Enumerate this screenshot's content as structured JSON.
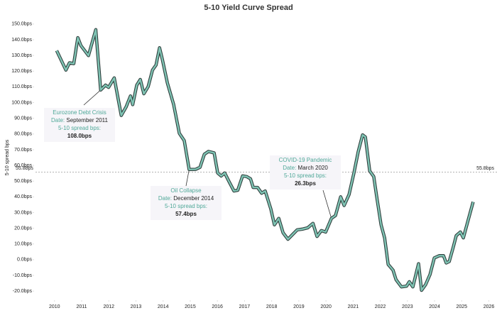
{
  "chart_data": {
    "type": "line",
    "title": "5-10 Yield Curve Spread",
    "y_label": "5-10 spread bps",
    "x": [
      2010.08,
      2010.42,
      2010.55,
      2010.71,
      2010.86,
      2010.97,
      2011.25,
      2011.52,
      2011.7,
      2011.88,
      2011.99,
      2012.2,
      2012.46,
      2012.64,
      2012.8,
      2012.88,
      2013.03,
      2013.16,
      2013.29,
      2013.45,
      2013.61,
      2013.74,
      2013.87,
      2013.97,
      2014.16,
      2014.39,
      2014.6,
      2014.78,
      2014.96,
      2015.2,
      2015.36,
      2015.52,
      2015.67,
      2015.88,
      2016.01,
      2016.14,
      2016.27,
      2016.43,
      2016.61,
      2016.75,
      2016.93,
      2017.08,
      2017.22,
      2017.32,
      2017.48,
      2017.63,
      2017.76,
      2017.97,
      2018.1,
      2018.26,
      2018.42,
      2018.6,
      2018.78,
      2018.94,
      2019.12,
      2019.33,
      2019.52,
      2019.67,
      2019.83,
      2019.99,
      2020.2,
      2020.35,
      2020.54,
      2020.67,
      2020.85,
      2021.03,
      2021.19,
      2021.35,
      2021.45,
      2021.61,
      2021.76,
      2021.87,
      2022.03,
      2022.16,
      2022.29,
      2022.47,
      2022.58,
      2022.78,
      2022.97,
      2023.07,
      2023.2,
      2023.41,
      2023.52,
      2023.67,
      2023.83,
      2023.99,
      2024.17,
      2024.33,
      2024.43,
      2024.54,
      2024.69,
      2024.8,
      2024.95,
      2025.06,
      2025.19,
      2025.42
    ],
    "series": [
      {
        "name": "5-10 spread bps",
        "color": "#7fc4b4",
        "outline": "#2e3d3b",
        "values": [
          133.1,
          120.7,
          125.3,
          124.8,
          141.3,
          136.3,
          129.9,
          146.4,
          108.0,
          111.1,
          109.7,
          115.7,
          91.8,
          97.3,
          104.2,
          98.7,
          111.1,
          114.7,
          105.6,
          110.2,
          120.7,
          123.9,
          134.9,
          127.6,
          112.4,
          98.7,
          80.4,
          75.8,
          57.4,
          57.5,
          58.8,
          67.1,
          68.9,
          68.0,
          55.2,
          53.3,
          55.2,
          49.7,
          43.7,
          44.2,
          53.3,
          52.9,
          51.5,
          46.0,
          46.0,
          42.3,
          43.7,
          32.2,
          22.2,
          26.3,
          17.1,
          13.0,
          16.2,
          19.0,
          19.4,
          20.3,
          23.1,
          14.8,
          18.5,
          17.6,
          26.3,
          28.1,
          40.0,
          34.5,
          41.4,
          55.2,
          68.9,
          79.4,
          78.1,
          56.5,
          52.9,
          40.0,
          22.2,
          13.9,
          -3.0,
          -6.7,
          -12.7,
          -17.3,
          -16.8,
          -14.0,
          -17.3,
          -2.6,
          -19.5,
          -15.9,
          -9.5,
          1.1,
          2.5,
          2.5,
          -2.1,
          -1.2,
          8.0,
          15.3,
          17.6,
          13.9,
          22.2,
          36.8
        ]
      }
    ],
    "xlim": [
      2009.3,
      2026.3
    ],
    "xticks": [
      2010,
      2011,
      2012,
      2013,
      2014,
      2015,
      2016,
      2017,
      2018,
      2019,
      2020,
      2021,
      2022,
      2023,
      2024,
      2025,
      2026
    ],
    "ylim": [
      -24,
      154
    ],
    "yticks": [
      {
        "value": -20,
        "label": "-20.0bps"
      },
      {
        "value": -10,
        "label": "-10.0bps"
      },
      {
        "value": 0,
        "label": "0.0bps"
      },
      {
        "value": 10,
        "label": "10.0bps"
      },
      {
        "value": 20,
        "label": "20.0bps"
      },
      {
        "value": 30,
        "label": "30.0bps"
      },
      {
        "value": 40,
        "label": "40.0bps"
      },
      {
        "value": 50,
        "label": "50.0bps"
      },
      {
        "value": 60,
        "label": "60.0bps"
      },
      {
        "value": 70,
        "label": "70.0bps"
      },
      {
        "value": 80,
        "label": "80.0bps"
      },
      {
        "value": 90,
        "label": "90.0bps"
      },
      {
        "value": 100,
        "label": "100.0bps"
      },
      {
        "value": 110,
        "label": "110.0bps"
      },
      {
        "value": 120,
        "label": "120.0bps"
      },
      {
        "value": 130,
        "label": "130.0bps"
      },
      {
        "value": 140,
        "label": "140.0bps"
      },
      {
        "value": 150,
        "label": "150.0bps"
      }
    ],
    "grid": false,
    "reference_line": {
      "value": 55.8,
      "label": "55.8bps",
      "color": "#999999"
    },
    "annotations": [
      {
        "title": "Eurozone Debt Crisis",
        "date_prefix": "Date:",
        "date": "September 2011",
        "metric": "5-10 spread bps:",
        "x": 2011.7,
        "value": 108.0,
        "value_label": "108.0bps"
      },
      {
        "title": "Oil Collapse",
        "date_prefix": "Date:",
        "date": "December 2014",
        "metric": "5-10 spread bps:",
        "x": 2014.96,
        "value": 57.4,
        "value_label": "57.4bps"
      },
      {
        "title": "COVID-19 Pandemic",
        "date_prefix": "Date:",
        "date": "March 2020",
        "metric": "5-10 spread bps:",
        "x": 2020.2,
        "value": 26.3,
        "value_label": "26.3bps"
      }
    ]
  }
}
